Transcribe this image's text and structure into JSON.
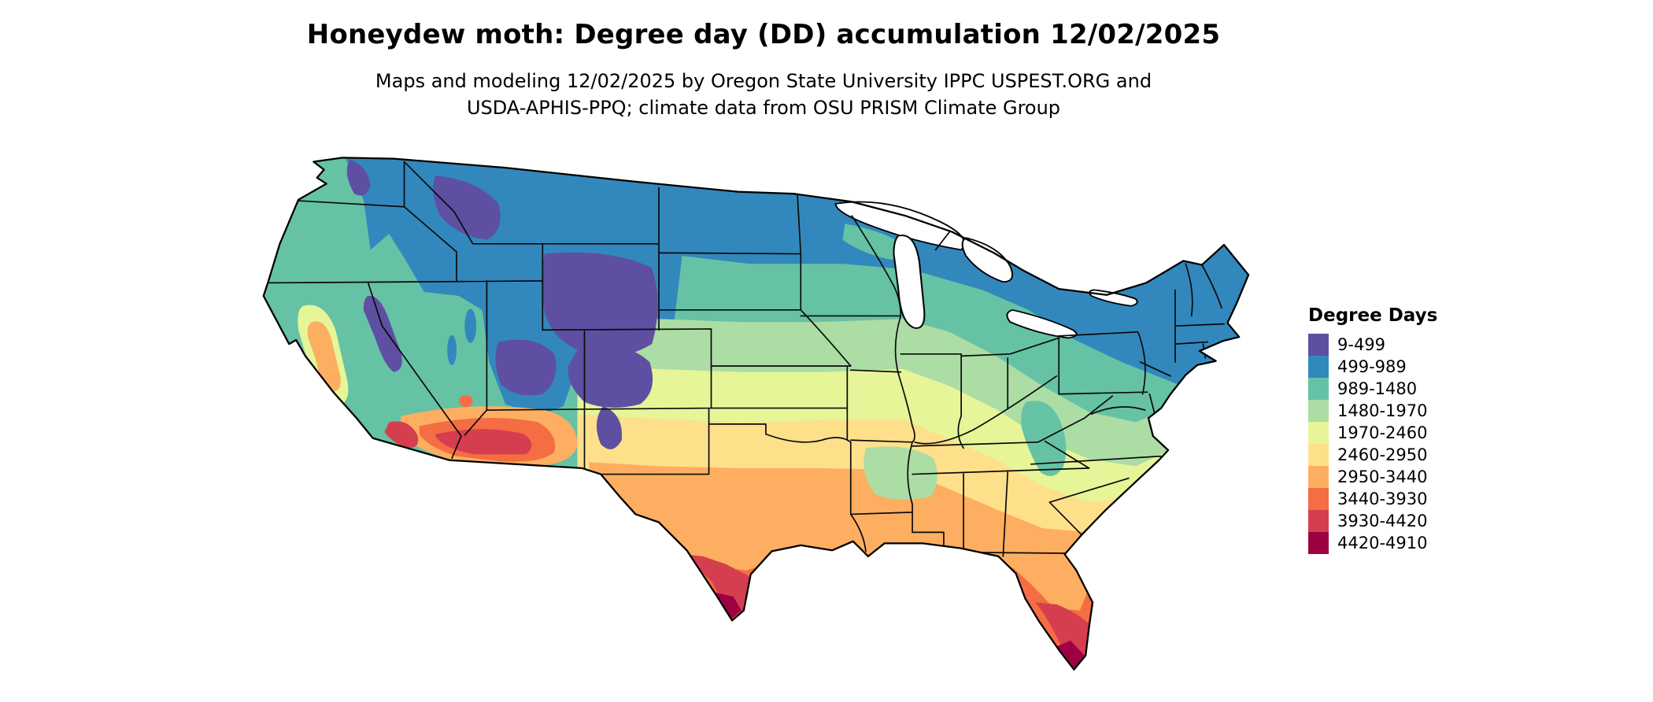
{
  "header": {
    "title": "Honeydew moth: Degree day (DD) accumulation 12/02/2025",
    "subtitle_line1": "Maps and modeling 12/02/2025 by Oregon State University IPPC USPEST.ORG and",
    "subtitle_line2": "USDA-APHIS-PPQ; climate data from OSU PRISM Climate Group"
  },
  "legend": {
    "title": "Degree Days",
    "entries": [
      {
        "label": "9-499",
        "color": "#5e4fa2"
      },
      {
        "label": "499-989",
        "color": "#3288bd"
      },
      {
        "label": "989-1480",
        "color": "#66c2a5"
      },
      {
        "label": "1480-1970",
        "color": "#abdda4"
      },
      {
        "label": "1970-2460",
        "color": "#e6f598"
      },
      {
        "label": "2460-2950",
        "color": "#fee08b"
      },
      {
        "label": "2950-3440",
        "color": "#fdae61"
      },
      {
        "label": "3440-3930",
        "color": "#f46d43"
      },
      {
        "label": "3930-4420",
        "color": "#d53e4f"
      },
      {
        "label": "4420-4910",
        "color": "#9e0142"
      }
    ]
  },
  "chart_data": {
    "type": "heatmap",
    "map_kind": "choropleth-raster",
    "region": "Contiguous United States",
    "title": "Honeydew moth: Degree day (DD) accumulation 12/02/2025",
    "legend_title": "Degree Days",
    "value_unit": "degree days",
    "value_range": [
      9,
      4910
    ],
    "classes": [
      {
        "range": "9-499",
        "color": "#5e4fa2"
      },
      {
        "range": "499-989",
        "color": "#3288bd"
      },
      {
        "range": "989-1480",
        "color": "#66c2a5"
      },
      {
        "range": "1480-1970",
        "color": "#abdda4"
      },
      {
        "range": "1970-2460",
        "color": "#e6f598"
      },
      {
        "range": "2460-2950",
        "color": "#fee08b"
      },
      {
        "range": "2950-3440",
        "color": "#fdae61"
      },
      {
        "range": "3440-3930",
        "color": "#f46d43"
      },
      {
        "range": "3930-4420",
        "color": "#d53e4f"
      },
      {
        "range": "4420-4910",
        "color": "#9e0142"
      }
    ],
    "spatial_pattern": "Low accumulation (blue/purple) across the northern tier and high-elevation Rockies (Wyoming, Colorado, Utah, western Montana, Sierra Nevada); mid values (green/yellow) across the central plains, Midwest and Appalachians; high values (orange/red) across the southern tier, peaking in south Texas, the southern Arizona/California deserts and south Florida"
  }
}
